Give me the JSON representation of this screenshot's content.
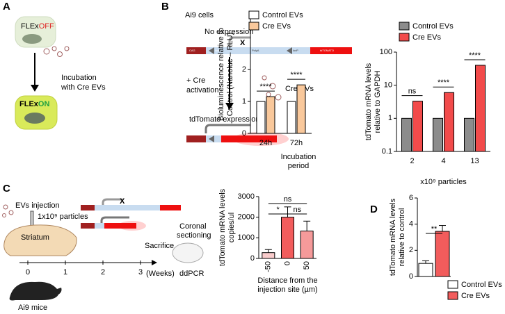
{
  "panels": [
    "A",
    "B",
    "C",
    "D"
  ],
  "diagram_a": {
    "cell_off": {
      "prefix": "FLEx",
      "state": "OFF"
    },
    "step": [
      "Incubation",
      "with Cre EVs"
    ],
    "cell_on": {
      "prefix": "FLEx",
      "state": "ON"
    }
  },
  "diagram_b": {
    "title": "Ai9 cells",
    "no_expr": "No expression",
    "mark": "X",
    "activation": [
      "+ Cre",
      "activation"
    ],
    "evs": "Cre EVs",
    "expr": "tdTomato expression",
    "parts": [
      "CAG",
      "loxP",
      "PolyA",
      "loxP",
      "tdTOMATO"
    ]
  },
  "diagram_c": {
    "injection": "EVs injection",
    "dose": "1x10⁹ particles",
    "region": "Striatum",
    "mark": "X",
    "sectioning": [
      "Coronal",
      "sectioning"
    ],
    "sacrifice": "Sacrifice",
    "assay": "ddPCR",
    "weeks": [
      "0",
      "1",
      "2",
      "3"
    ],
    "unit": "(Weeks)",
    "mice": "Ai9 mice"
  },
  "chart_data": [
    {
      "type": "bar",
      "ylabel": [
        "Bioluminescence relative to",
        "Control (Nanoluc – RLU)"
      ],
      "xlabel": [
        "Incubation",
        "period"
      ],
      "categories": [
        "24h",
        "72h"
      ],
      "series": [
        {
          "name": "Control EVs",
          "color": "#ffffff",
          "values": [
            1,
            1
          ]
        },
        {
          "name": "Cre EVs",
          "color": "#f9c89b",
          "values": [
            1.15,
            1.52
          ]
        }
      ],
      "ylim": [
        0,
        3.7
      ],
      "yticks": [
        0,
        1,
        2
      ],
      "annotations": [
        "****",
        "****"
      ]
    },
    {
      "type": "bar",
      "log": true,
      "ylabel": [
        "tdTomato mRNA levels",
        "relative to GAPDH"
      ],
      "xlabel": [
        "x10⁹ particles"
      ],
      "categories": [
        "2",
        "4",
        "13"
      ],
      "series": [
        {
          "name": "Control EVs",
          "color": "#8c8c8c",
          "values": [
            1,
            1,
            1
          ]
        },
        {
          "name": "Cre EVs",
          "color": "#f24b4b",
          "values": [
            3.3,
            6,
            40
          ]
        }
      ],
      "ylim": [
        0.1,
        100
      ],
      "yticks": [
        0.1,
        1,
        10,
        100
      ],
      "annotations": [
        "ns",
        "****",
        "****"
      ]
    },
    {
      "type": "bar",
      "ylabel": [
        "tdTomato mRNA levels",
        "copies/ul"
      ],
      "xlabel": [
        "Distance from the",
        "injection site (µm)"
      ],
      "categories": [
        "-50",
        "0",
        "50"
      ],
      "series": [
        {
          "colors": [
            "#f9cccc",
            "#f25c5c",
            "#f59a9a"
          ],
          "values": [
            280,
            2000,
            1330
          ],
          "errors": [
            150,
            500,
            480
          ]
        }
      ],
      "ylim": [
        0,
        3000
      ],
      "yticks": [
        0,
        1000,
        2000,
        3000
      ],
      "annotations": [
        "ns",
        "*",
        "ns"
      ]
    },
    {
      "type": "bar",
      "ylabel": [
        "tdTomato mRNA levels",
        "relative to control"
      ],
      "categories": [
        null
      ],
      "series": [
        {
          "name": "Control EVs",
          "color": "#ffffff",
          "values": [
            1
          ],
          "errors": [
            0.2
          ]
        },
        {
          "name": "Cre EVs",
          "color": "#f25c5c",
          "values": [
            3.45
          ],
          "errors": [
            0.45
          ]
        }
      ],
      "ylim": [
        0,
        6
      ],
      "yticks": [
        0,
        2,
        4,
        6
      ],
      "annotations": [
        "**"
      ]
    }
  ]
}
